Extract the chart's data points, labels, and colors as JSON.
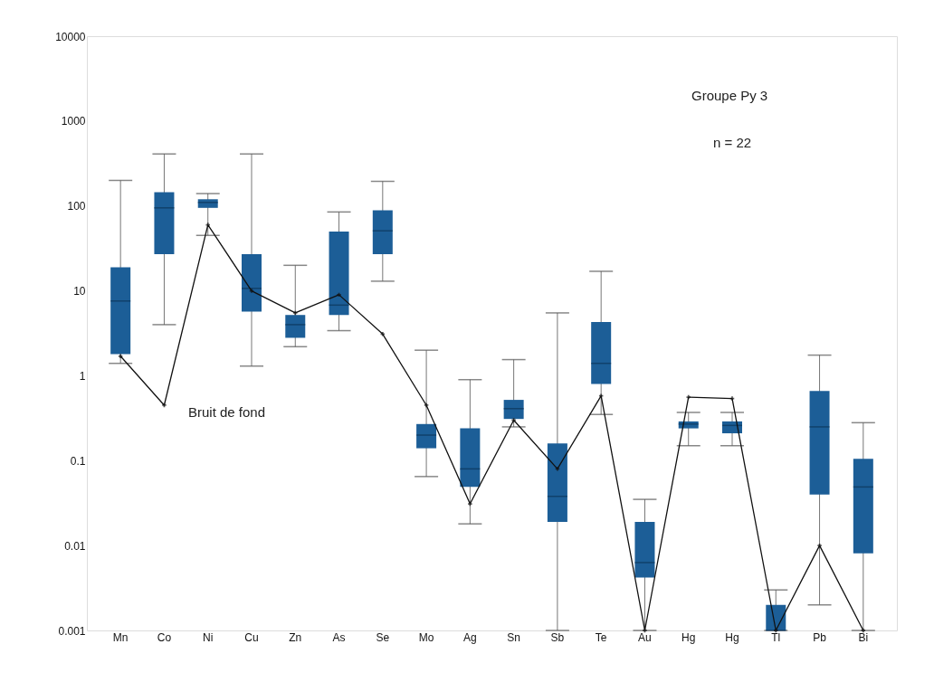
{
  "chart_data": {
    "type": "box",
    "categories": [
      "Mn",
      "Co",
      "Ni",
      "Cu",
      "Zn",
      "As",
      "Se",
      "Mo",
      "Ag",
      "Sn",
      "Sb",
      "Te",
      "Au",
      "Hg",
      "Hg",
      "Tl",
      "Pb",
      "Bi"
    ],
    "log": true,
    "ylim": [
      0.001,
      10000
    ],
    "yticks": [
      0.001,
      0.01,
      0.1,
      1,
      10,
      100,
      1000,
      10000
    ],
    "grid": false,
    "annotations": [
      "Groupe Py 3",
      "n = 22"
    ],
    "series": [
      {
        "color": "#1c5e97",
        "boxes": [
          {
            "low": 1.4,
            "q1": 1.8,
            "median": 7.6,
            "q3": 19,
            "high": 200
          },
          {
            "low": 4,
            "q1": 27,
            "median": 95,
            "q3": 145,
            "high": 410
          },
          {
            "low": 45,
            "q1": 95,
            "median": 110,
            "q3": 120,
            "high": 140
          },
          {
            "low": 1.3,
            "q1": 5.7,
            "median": 10.7,
            "q3": 27,
            "high": 410
          },
          {
            "low": 2.2,
            "q1": 2.8,
            "median": 4,
            "q3": 5.2,
            "high": 20
          },
          {
            "low": 3.4,
            "q1": 5.2,
            "median": 6.8,
            "q3": 50,
            "high": 85
          },
          {
            "low": 13,
            "q1": 27,
            "median": 51,
            "q3": 89,
            "high": 195
          },
          {
            "low": 0.065,
            "q1": 0.14,
            "median": 0.2,
            "q3": 0.27,
            "high": 2
          },
          {
            "low": 0.018,
            "q1": 0.049,
            "median": 0.08,
            "q3": 0.24,
            "high": 0.9
          },
          {
            "low": 0.25,
            "q1": 0.31,
            "median": 0.41,
            "q3": 0.52,
            "high": 1.55
          },
          {
            "low": 0.001,
            "q1": 0.019,
            "median": 0.038,
            "q3": 0.16,
            "high": 5.5
          },
          {
            "low": 0.35,
            "q1": 0.8,
            "median": 1.4,
            "q3": 4.3,
            "high": 17
          },
          {
            "low": 0.001,
            "q1": 0.0042,
            "median": 0.0063,
            "q3": 0.019,
            "high": 0.035
          },
          {
            "low": 0.15,
            "q1": 0.24,
            "median": 0.27,
            "q3": 0.29,
            "high": 0.37
          },
          {
            "low": 0.15,
            "q1": 0.21,
            "median": 0.26,
            "q3": 0.29,
            "high": 0.37
          },
          {
            "low": 0.001,
            "q1": 0.001,
            "median": 0.001,
            "q3": 0.002,
            "high": 0.003
          },
          {
            "low": 0.002,
            "q1": 0.04,
            "median": 0.25,
            "q3": 0.66,
            "high": 1.75
          },
          {
            "low": 0.001,
            "q1": 0.0081,
            "median": 0.049,
            "q3": 0.105,
            "high": 0.28
          }
        ]
      },
      {
        "type": "line",
        "name": "Bruit de fond",
        "color": "#111111",
        "marker": "cross",
        "line_style": "solid",
        "values": [
          1.7,
          0.45,
          60,
          10,
          5.5,
          9,
          3.1,
          0.45,
          0.031,
          0.3,
          0.08,
          0.58,
          0.001,
          0.56,
          0.54,
          0.001,
          0.01,
          0.001
        ]
      }
    ]
  }
}
